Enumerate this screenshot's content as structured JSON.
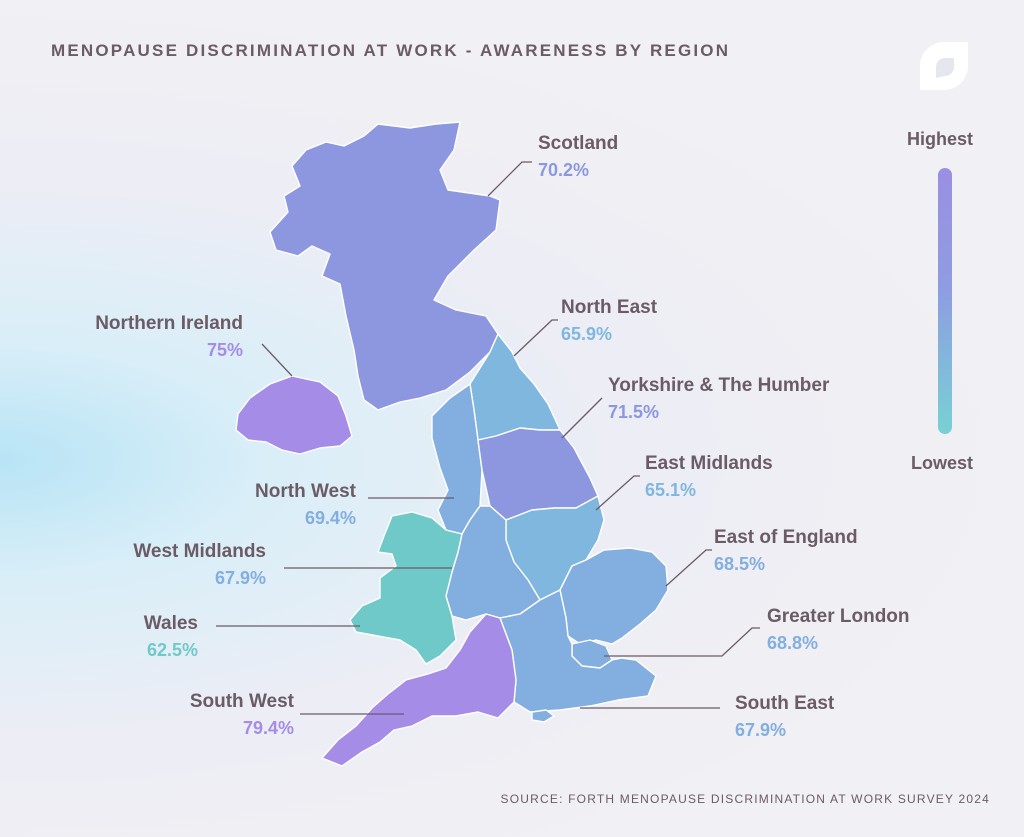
{
  "title": {
    "bold": "MENOPAUSE DISCRIMINATION AT WORK",
    "rest": " - AWARENESS BY REGION"
  },
  "legend": {
    "high": "Highest",
    "low": "Lowest",
    "color_high": "#9b8fe3",
    "color_low": "#78d1d4"
  },
  "colors": {
    "text": "#6b5b66",
    "scotland": "#8a91e2",
    "north_east": "#83b0e0",
    "yorkshire": "#8a91e2",
    "north_west": "#86a3e0",
    "east_midlands": "#85b0df",
    "west_midlands": "#86afdf",
    "east_of_england": "#86aedf",
    "greater_london": "#86aedf",
    "south_east": "#86aedf",
    "wales": "#7ecfd0",
    "south_west": "#a58ce6",
    "northern_ireland": "#a88ce6"
  },
  "regions": [
    {
      "id": "scotland",
      "name": "Scotland",
      "value": "70.2%",
      "color": "#8d97e0"
    },
    {
      "id": "north_east",
      "name": "North East",
      "value": "65.9%",
      "color": "#7fb7df"
    },
    {
      "id": "yorkshire",
      "name": "Yorkshire & The Humber",
      "value": "71.5%",
      "color": "#8d97e0"
    },
    {
      "id": "east_midlands",
      "name": "East Midlands",
      "value": "65.1%",
      "color": "#7fb7df"
    },
    {
      "id": "east_of_england",
      "name": "East of England",
      "value": "68.5%",
      "color": "#83aee0"
    },
    {
      "id": "greater_london",
      "name": "Greater London",
      "value": "68.8%",
      "color": "#83aee0"
    },
    {
      "id": "south_east",
      "name": "South East",
      "value": "67.9%",
      "color": "#83aee0"
    },
    {
      "id": "south_west",
      "name": "South West",
      "value": "79.4%",
      "color": "#a58ce6"
    },
    {
      "id": "wales",
      "name": "Wales",
      "value": "62.5%",
      "color": "#6fc9c9"
    },
    {
      "id": "west_midlands",
      "name": "West Midlands",
      "value": "67.9%",
      "color": "#83aee0"
    },
    {
      "id": "north_west",
      "name": "North West",
      "value": "69.4%",
      "color": "#83aee0"
    },
    {
      "id": "northern_ireland",
      "name": "Northern Ireland",
      "value": "75%",
      "color": "#a58ce6"
    }
  ],
  "source": "SOURCE: FORTH MENOPAUSE DISCRIMINATION AT WORK SURVEY 2024"
}
